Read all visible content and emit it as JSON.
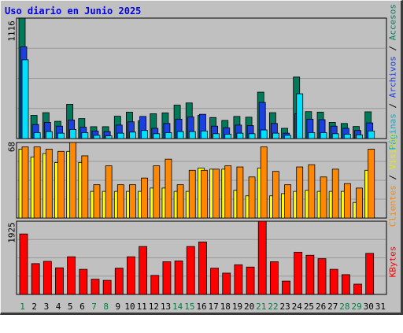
{
  "title": "Uso diario en Junio 2025",
  "colors": {
    "background": "#c0c0c0",
    "grid": "#999999",
    "visitas": "#007a5a",
    "paginas": "#00e0ff",
    "archivos": "#1c40e0",
    "accesos": "#008066",
    "clientes": "#ff8800",
    "visitas_bar": "#ffff00",
    "kbytes": "#ff0000",
    "weekend": "#008040",
    "weekday": "#000000"
  },
  "chart_data": [
    {
      "type": "bar",
      "title": "Uso diario en Junio 2025",
      "ymax_label": "1116",
      "ylim": [
        0,
        1116
      ],
      "categories": [
        "1",
        "2",
        "3",
        "4",
        "5",
        "6",
        "7",
        "8",
        "9",
        "10",
        "11",
        "12",
        "13",
        "14",
        "15",
        "16",
        "17",
        "18",
        "19",
        "20",
        "21",
        "22",
        "23",
        "24",
        "25",
        "26",
        "27",
        "28",
        "29",
        "30",
        "31"
      ],
      "series": [
        {
          "name": "Accesos",
          "values": [
            1116,
            215,
            240,
            160,
            318,
            185,
            110,
            110,
            207,
            245,
            165,
            230,
            238,
            310,
            330,
            215,
            195,
            168,
            205,
            198,
            430,
            240,
            95,
            570,
            250,
            245,
            150,
            140,
            112,
            248,
            null
          ]
        },
        {
          "name": "Archivos",
          "values": [
            850,
            130,
            150,
            115,
            172,
            105,
            70,
            65,
            125,
            155,
            205,
            95,
            140,
            180,
            200,
            225,
            115,
            100,
            125,
            120,
            335,
            140,
            50,
            230,
            180,
            175,
            115,
            95,
            75,
            145,
            null
          ]
        },
        {
          "name": "Páginas",
          "values": [
            730,
            55,
            65,
            50,
            85,
            55,
            30,
            25,
            50,
            60,
            75,
            45,
            55,
            65,
            65,
            70,
            45,
            40,
            50,
            45,
            80,
            50,
            30,
            415,
            55,
            55,
            45,
            40,
            35,
            70,
            null
          ]
        }
      ],
      "legend": [
        "Páginas",
        "Archivos",
        "Accesos"
      ]
    },
    {
      "type": "bar",
      "ymax_label": "68",
      "ylim": [
        0,
        68
      ],
      "categories": [
        "1",
        "2",
        "3",
        "4",
        "5",
        "6",
        "7",
        "8",
        "9",
        "10",
        "11",
        "12",
        "13",
        "14",
        "15",
        "16",
        "17",
        "18",
        "19",
        "20",
        "21",
        "22",
        "23",
        "24",
        "25",
        "26",
        "27",
        "28",
        "29",
        "30",
        "31"
      ],
      "series": [
        {
          "name": "Visitas",
          "values": [
            62,
            55,
            58,
            50,
            60,
            50,
            24,
            24,
            24,
            24,
            24,
            27,
            27,
            24,
            24,
            45,
            44,
            44,
            25,
            20,
            45,
            20,
            22,
            24,
            25,
            24,
            24,
            24,
            14,
            43,
            null
          ]
        },
        {
          "name": "Clientes",
          "values": [
            64,
            64,
            62,
            60,
            68,
            56,
            30,
            47,
            30,
            30,
            36,
            47,
            53,
            30,
            43,
            43,
            44,
            47,
            46,
            37,
            64,
            42,
            30,
            46,
            48,
            37,
            44,
            31,
            27,
            62,
            null
          ]
        }
      ],
      "legend": [
        "Visitas",
        "Clientes"
      ]
    },
    {
      "type": "bar",
      "ymax_label": "1925",
      "ylim": [
        0,
        1925
      ],
      "categories": [
        "1",
        "2",
        "3",
        "4",
        "5",
        "6",
        "7",
        "8",
        "9",
        "10",
        "11",
        "12",
        "13",
        "14",
        "15",
        "16",
        "17",
        "18",
        "19",
        "20",
        "21",
        "22",
        "23",
        "24",
        "25",
        "26",
        "27",
        "28",
        "29",
        "30",
        "31"
      ],
      "series": [
        {
          "name": "KBytes",
          "values": [
            1590,
            810,
            870,
            700,
            990,
            660,
            400,
            370,
            690,
            990,
            1260,
            500,
            860,
            880,
            1260,
            1380,
            690,
            560,
            780,
            720,
            1925,
            860,
            350,
            1110,
            1030,
            940,
            660,
            520,
            270,
            1080,
            null
          ]
        }
      ],
      "legend": [
        "KBytes"
      ]
    }
  ],
  "weekend_days": [
    1,
    7,
    8,
    14,
    15,
    21,
    22,
    28,
    29
  ]
}
